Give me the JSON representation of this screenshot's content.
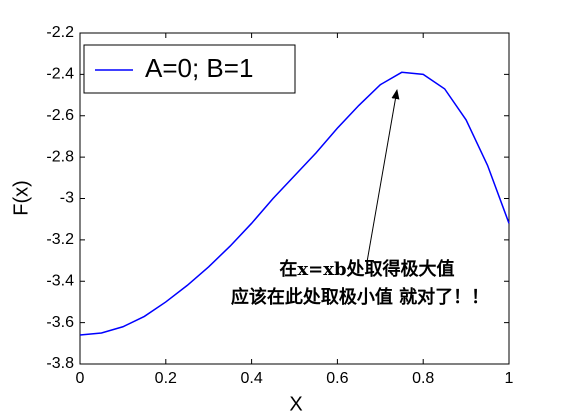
{
  "chart_data": {
    "type": "line",
    "xlabel": "X",
    "ylabel": "F(x)",
    "x": [
      0,
      0.05,
      0.1,
      0.15,
      0.2,
      0.25,
      0.3,
      0.35,
      0.4,
      0.45,
      0.5,
      0.55,
      0.6,
      0.65,
      0.7,
      0.75,
      0.8,
      0.85,
      0.9,
      0.95,
      1
    ],
    "series": [
      {
        "name": "A=0; B=1",
        "color": "#0000ff",
        "values": [
          -3.66,
          -3.65,
          -3.62,
          -3.57,
          -3.5,
          -3.42,
          -3.33,
          -3.23,
          -3.12,
          -3.0,
          -2.89,
          -2.78,
          -2.66,
          -2.55,
          -2.45,
          -2.39,
          -2.4,
          -2.47,
          -2.62,
          -2.84,
          -3.12
        ]
      }
    ],
    "xlim": [
      0,
      1
    ],
    "xticks": [
      0,
      0.2,
      0.4,
      0.6,
      0.8,
      1
    ],
    "ylim": [
      -3.8,
      -2.2
    ],
    "yticks": [
      -3.8,
      -3.6,
      -3.4,
      -3.2,
      -3,
      -2.8,
      -2.6,
      -2.4,
      -2.2
    ],
    "legend": "upper left",
    "annotations": [
      "在x=xb处取得极大值",
      "应该在此处取极小值 就对了！！"
    ],
    "annotation_color": "#e00000"
  }
}
